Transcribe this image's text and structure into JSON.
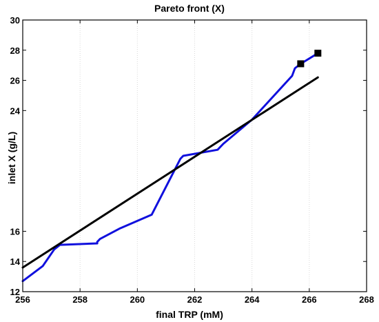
{
  "chart_data": {
    "type": "line",
    "title": "Pareto front (X)",
    "xlabel": "final TRP (mM)",
    "ylabel": "inlet X (g/L)",
    "xlim": [
      256,
      268
    ],
    "ylim": [
      12,
      30
    ],
    "xticks": [
      256,
      258,
      260,
      262,
      264,
      266,
      268
    ],
    "yticks": [
      12,
      14,
      16,
      24,
      26,
      28,
      30
    ],
    "grid": "vertical dotted",
    "series": [
      {
        "style": "line",
        "color": "#1010dd",
        "x": [
          256.0,
          256.7,
          257.1,
          257.3,
          258.6,
          258.6,
          258.7,
          259.4,
          260.5,
          261.5,
          261.6,
          262.8,
          263.0,
          264.0,
          265.4,
          265.5,
          265.7,
          266.3
        ],
        "y": [
          12.7,
          13.7,
          14.8,
          15.1,
          15.2,
          15.3,
          15.5,
          16.2,
          17.1,
          20.8,
          21.0,
          21.4,
          21.8,
          23.4,
          26.3,
          26.8,
          27.1,
          27.8
        ]
      },
      {
        "style": "line",
        "color": "#000000",
        "x": [
          256.0,
          266.3
        ],
        "y": [
          13.6,
          26.2
        ]
      },
      {
        "style": "marker",
        "color": "#000000",
        "x": [
          265.7,
          266.3
        ],
        "y": [
          27.1,
          27.8
        ]
      }
    ]
  }
}
